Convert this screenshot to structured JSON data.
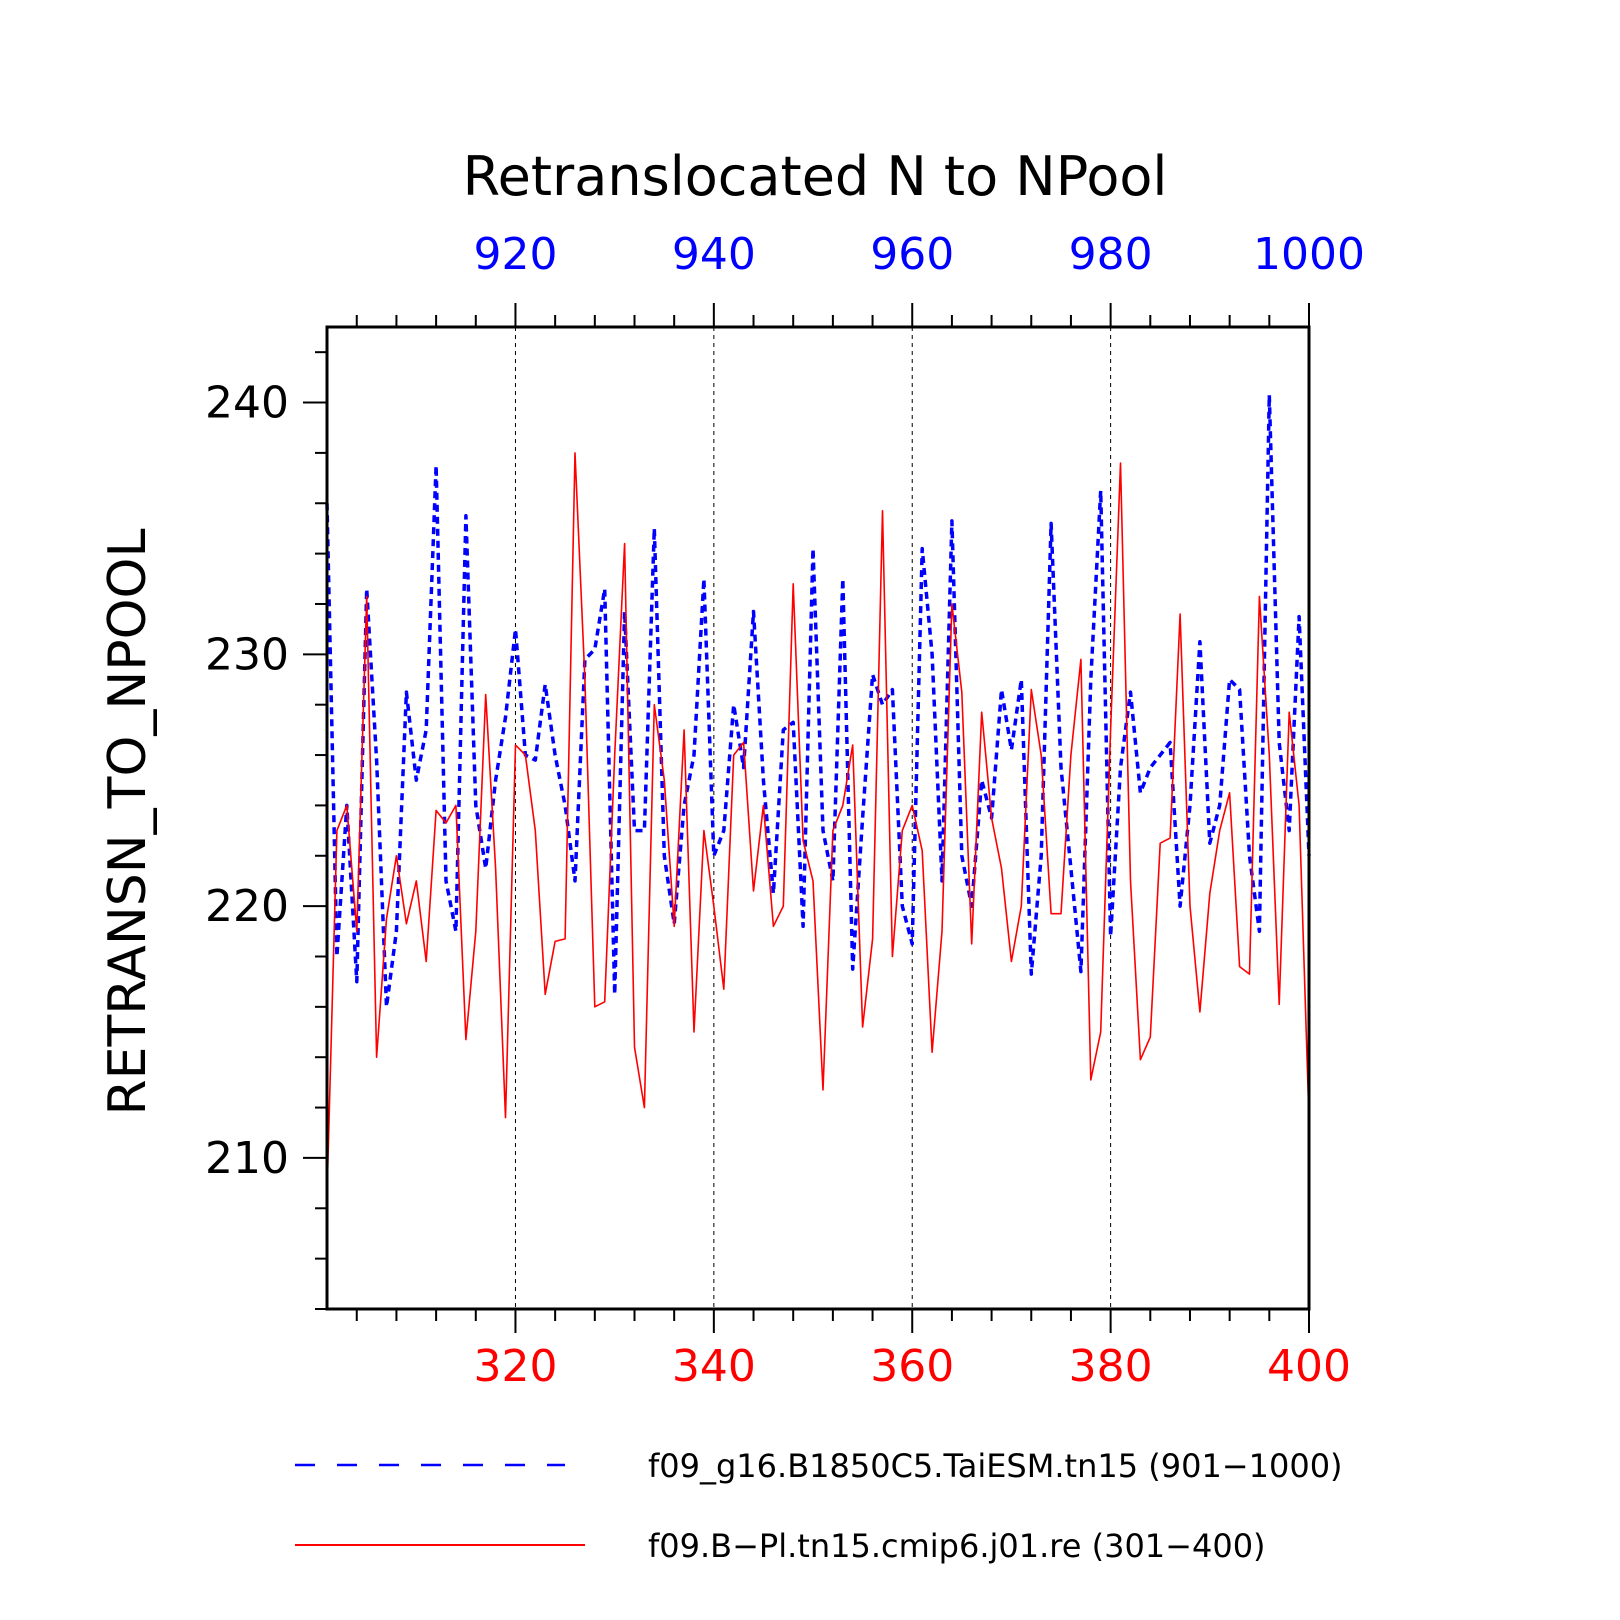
{
  "chart_data": {
    "type": "line",
    "title": "Retranslocated N to NPool",
    "ylabel": "RETRANSN_TO_NPOOL",
    "ylim": [
      204,
      243
    ],
    "y_ticks": [
      210,
      220,
      230,
      240
    ],
    "grid": "vertical dashed at labeled x ticks",
    "top_axis": {
      "range": [
        901,
        1000
      ],
      "ticks": [
        920,
        940,
        960,
        980,
        1000
      ],
      "color": "#0000ff"
    },
    "bottom_axis": {
      "range": [
        301,
        400
      ],
      "ticks": [
        320,
        340,
        360,
        380,
        400
      ],
      "color": "#ff0000"
    },
    "legend": {
      "placement": "bottom"
    },
    "series": [
      {
        "name": "f09_g16.B1850C5.TaiESM.tn15 (901−1000)",
        "axis": "top",
        "color": "#0000ff",
        "style": "dashed",
        "x_start": 901,
        "values": [
          236.0,
          218.0,
          224.0,
          217.0,
          232.6,
          225.8,
          216.0,
          219.0,
          228.5,
          225.0,
          227.0,
          237.5,
          221.0,
          219.0,
          235.5,
          224.0,
          221.5,
          225.0,
          227.5,
          231.0,
          226.0,
          225.8,
          228.8,
          226.0,
          224.0,
          221.0,
          229.8,
          230.2,
          232.6,
          216.5,
          231.7,
          223.0,
          223.0,
          235.0,
          222.0,
          219.3,
          224.0,
          226.0,
          233.0,
          222.0,
          223.0,
          228.0,
          225.5,
          231.7,
          225.0,
          220.5,
          227.0,
          227.3,
          219.2,
          234.2,
          223.0,
          221.0,
          233.0,
          217.5,
          223.5,
          229.2,
          228.0,
          228.6,
          220.0,
          218.5,
          234.2,
          230.0,
          221.0,
          235.3,
          222.0,
          220.0,
          225.0,
          223.5,
          228.6,
          226.2,
          229.0,
          217.3,
          222.0,
          235.2,
          225.5,
          221.5,
          217.4,
          229.0,
          236.5,
          218.8,
          225.5,
          228.5,
          224.5,
          225.5,
          226.0,
          226.5,
          220.0,
          224.0,
          230.5,
          222.5,
          224.0,
          229.0,
          228.6,
          222.0,
          219.0,
          240.3,
          226.5,
          223.0,
          231.5,
          222.0
        ]
      },
      {
        "name": "f09.B−Pl.tn15.cmip6.j01.re (301−400)",
        "axis": "bottom",
        "color": "#ff0000",
        "style": "solid",
        "x_start": 301,
        "values": [
          208.5,
          223.0,
          224.0,
          219.0,
          232.3,
          214.0,
          219.5,
          222.0,
          219.3,
          221.0,
          217.8,
          223.8,
          223.3,
          224.0,
          214.7,
          219.0,
          228.4,
          221.5,
          211.6,
          226.4,
          226.0,
          223.0,
          216.5,
          218.6,
          218.7,
          238.0,
          229.0,
          216.0,
          216.2,
          226.0,
          234.4,
          214.4,
          212.0,
          228.0,
          225.0,
          219.2,
          227.0,
          215.0,
          223.0,
          220.0,
          216.7,
          226.0,
          226.5,
          220.6,
          224.0,
          219.2,
          220.0,
          232.8,
          222.6,
          221.0,
          212.7,
          223.0,
          224.0,
          226.4,
          215.2,
          218.7,
          235.7,
          218.0,
          223.0,
          224.0,
          222.2,
          214.2,
          219.0,
          232.0,
          228.5,
          218.5,
          227.7,
          223.5,
          221.5,
          217.8,
          220.0,
          228.6,
          226.0,
          219.7,
          219.7,
          226.0,
          229.8,
          213.1,
          215.0,
          227.0,
          237.6,
          221.0,
          213.9,
          214.8,
          222.5,
          222.7,
          231.6,
          220.0,
          215.8,
          220.5,
          223.0,
          224.5,
          217.6,
          217.3,
          232.3,
          226.0,
          216.1,
          227.7,
          224.0,
          211.5
        ]
      }
    ]
  }
}
